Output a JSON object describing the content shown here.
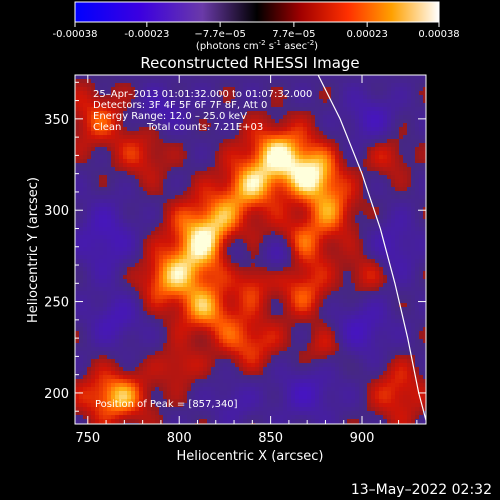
{
  "chart_data": {
    "type": "heatmap",
    "title": "Reconstructed RHESSI Image",
    "xlabel": "Heliocentric X (arcsec)",
    "ylabel": "Heliocentric Y (arcsec)",
    "xlim": [
      743,
      935
    ],
    "ylim": [
      183,
      374
    ],
    "x_ticks": [
      750,
      800,
      850,
      900
    ],
    "y_ticks": [
      200,
      250,
      300,
      350
    ],
    "colorbar": {
      "tick_labels": [
        "-0.00038",
        "-0.00023",
        "−7.7e−05",
        "7.7e−05",
        "0.00023",
        "0.00038"
      ],
      "tick_values": [
        -0.00038,
        -0.00023,
        -7.7e-05,
        7.7e-05,
        0.00023,
        0.00038
      ],
      "range": [
        -0.00038,
        0.00038
      ],
      "units_prefix": "(photons cm",
      "units_exp1": "-2",
      "units_mid": " s",
      "units_exp2": "-1",
      "units_mid2": " asec",
      "units_exp3": "-2",
      "units_suffix": ")"
    },
    "annotations": {
      "time_range": "25–Apr–2013 01:01:32.000 to 01:07:32.000",
      "detectors": "Detectors: 3F 4F 5F 6F 7F 8F, Att 0",
      "energy_range": "Energy Range: 12.0 – 25.0 keV",
      "algorithm": "Clean",
      "total_counts": "Total counts: 7.21E+03",
      "peak": "Position of Peak = [857,340]"
    },
    "blobs": [
      {
        "x": 855,
        "y": 330,
        "sx": 14,
        "sy": 12,
        "v": 1.0
      },
      {
        "x": 875,
        "y": 318,
        "sx": 10,
        "sy": 10,
        "v": 0.85
      },
      {
        "x": 838,
        "y": 312,
        "sx": 12,
        "sy": 10,
        "v": 0.7
      },
      {
        "x": 818,
        "y": 292,
        "sx": 14,
        "sy": 12,
        "v": 0.8
      },
      {
        "x": 808,
        "y": 272,
        "sx": 12,
        "sy": 14,
        "v": 0.75
      },
      {
        "x": 790,
        "y": 262,
        "sx": 10,
        "sy": 10,
        "v": 0.6
      },
      {
        "x": 815,
        "y": 245,
        "sx": 12,
        "sy": 10,
        "v": 0.7
      },
      {
        "x": 838,
        "y": 228,
        "sx": 12,
        "sy": 10,
        "v": 0.6
      },
      {
        "x": 840,
        "y": 260,
        "sx": 7,
        "sy": 9,
        "v": 0.5
      },
      {
        "x": 868,
        "y": 282,
        "sx": 12,
        "sy": 12,
        "v": 0.6
      },
      {
        "x": 885,
        "y": 300,
        "sx": 10,
        "sy": 10,
        "v": 0.55
      },
      {
        "x": 868,
        "y": 255,
        "sx": 10,
        "sy": 10,
        "v": 0.55
      },
      {
        "x": 765,
        "y": 198,
        "sx": 13,
        "sy": 10,
        "v": 0.9
      },
      {
        "x": 755,
        "y": 350,
        "sx": 12,
        "sy": 12,
        "v": 0.55
      },
      {
        "x": 780,
        "y": 330,
        "sx": 10,
        "sy": 10,
        "v": 0.45
      },
      {
        "x": 920,
        "y": 200,
        "sx": 10,
        "sy": 12,
        "v": 0.55
      },
      {
        "x": 902,
        "y": 265,
        "sx": 8,
        "sy": 8,
        "v": 0.45
      },
      {
        "x": 800,
        "y": 215,
        "sx": 8,
        "sy": 8,
        "v": 0.45
      },
      {
        "x": 880,
        "y": 225,
        "sx": 8,
        "sy": 8,
        "v": 0.4
      },
      {
        "x": 915,
        "y": 330,
        "sx": 9,
        "sy": 9,
        "v": 0.4
      },
      {
        "x": 855,
        "y": 275,
        "sx": 7,
        "sy": 7,
        "v": -0.6
      },
      {
        "x": 832,
        "y": 278,
        "sx": 6,
        "sy": 8,
        "v": -0.4
      },
      {
        "x": 760,
        "y": 285,
        "sx": 11,
        "sy": 14,
        "v": -0.55
      },
      {
        "x": 765,
        "y": 240,
        "sx": 10,
        "sy": 10,
        "v": -0.5
      },
      {
        "x": 790,
        "y": 355,
        "sx": 10,
        "sy": 8,
        "v": -0.45
      },
      {
        "x": 905,
        "y": 350,
        "sx": 10,
        "sy": 10,
        "v": -0.5
      },
      {
        "x": 900,
        "y": 235,
        "sx": 11,
        "sy": 11,
        "v": -0.55
      },
      {
        "x": 870,
        "y": 200,
        "sx": 12,
        "sy": 10,
        "v": -0.5
      },
      {
        "x": 830,
        "y": 195,
        "sx": 8,
        "sy": 8,
        "v": -0.35
      },
      {
        "x": 918,
        "y": 280,
        "sx": 9,
        "sy": 12,
        "v": -0.45
      }
    ],
    "limb": [
      [
        876,
        374
      ],
      [
        888,
        350
      ],
      [
        900,
        320
      ],
      [
        910,
        290
      ],
      [
        918,
        260
      ],
      [
        925,
        230
      ],
      [
        931,
        200
      ],
      [
        935,
        185
      ]
    ]
  },
  "footer": {
    "date": "13–May–2022 02:32"
  }
}
